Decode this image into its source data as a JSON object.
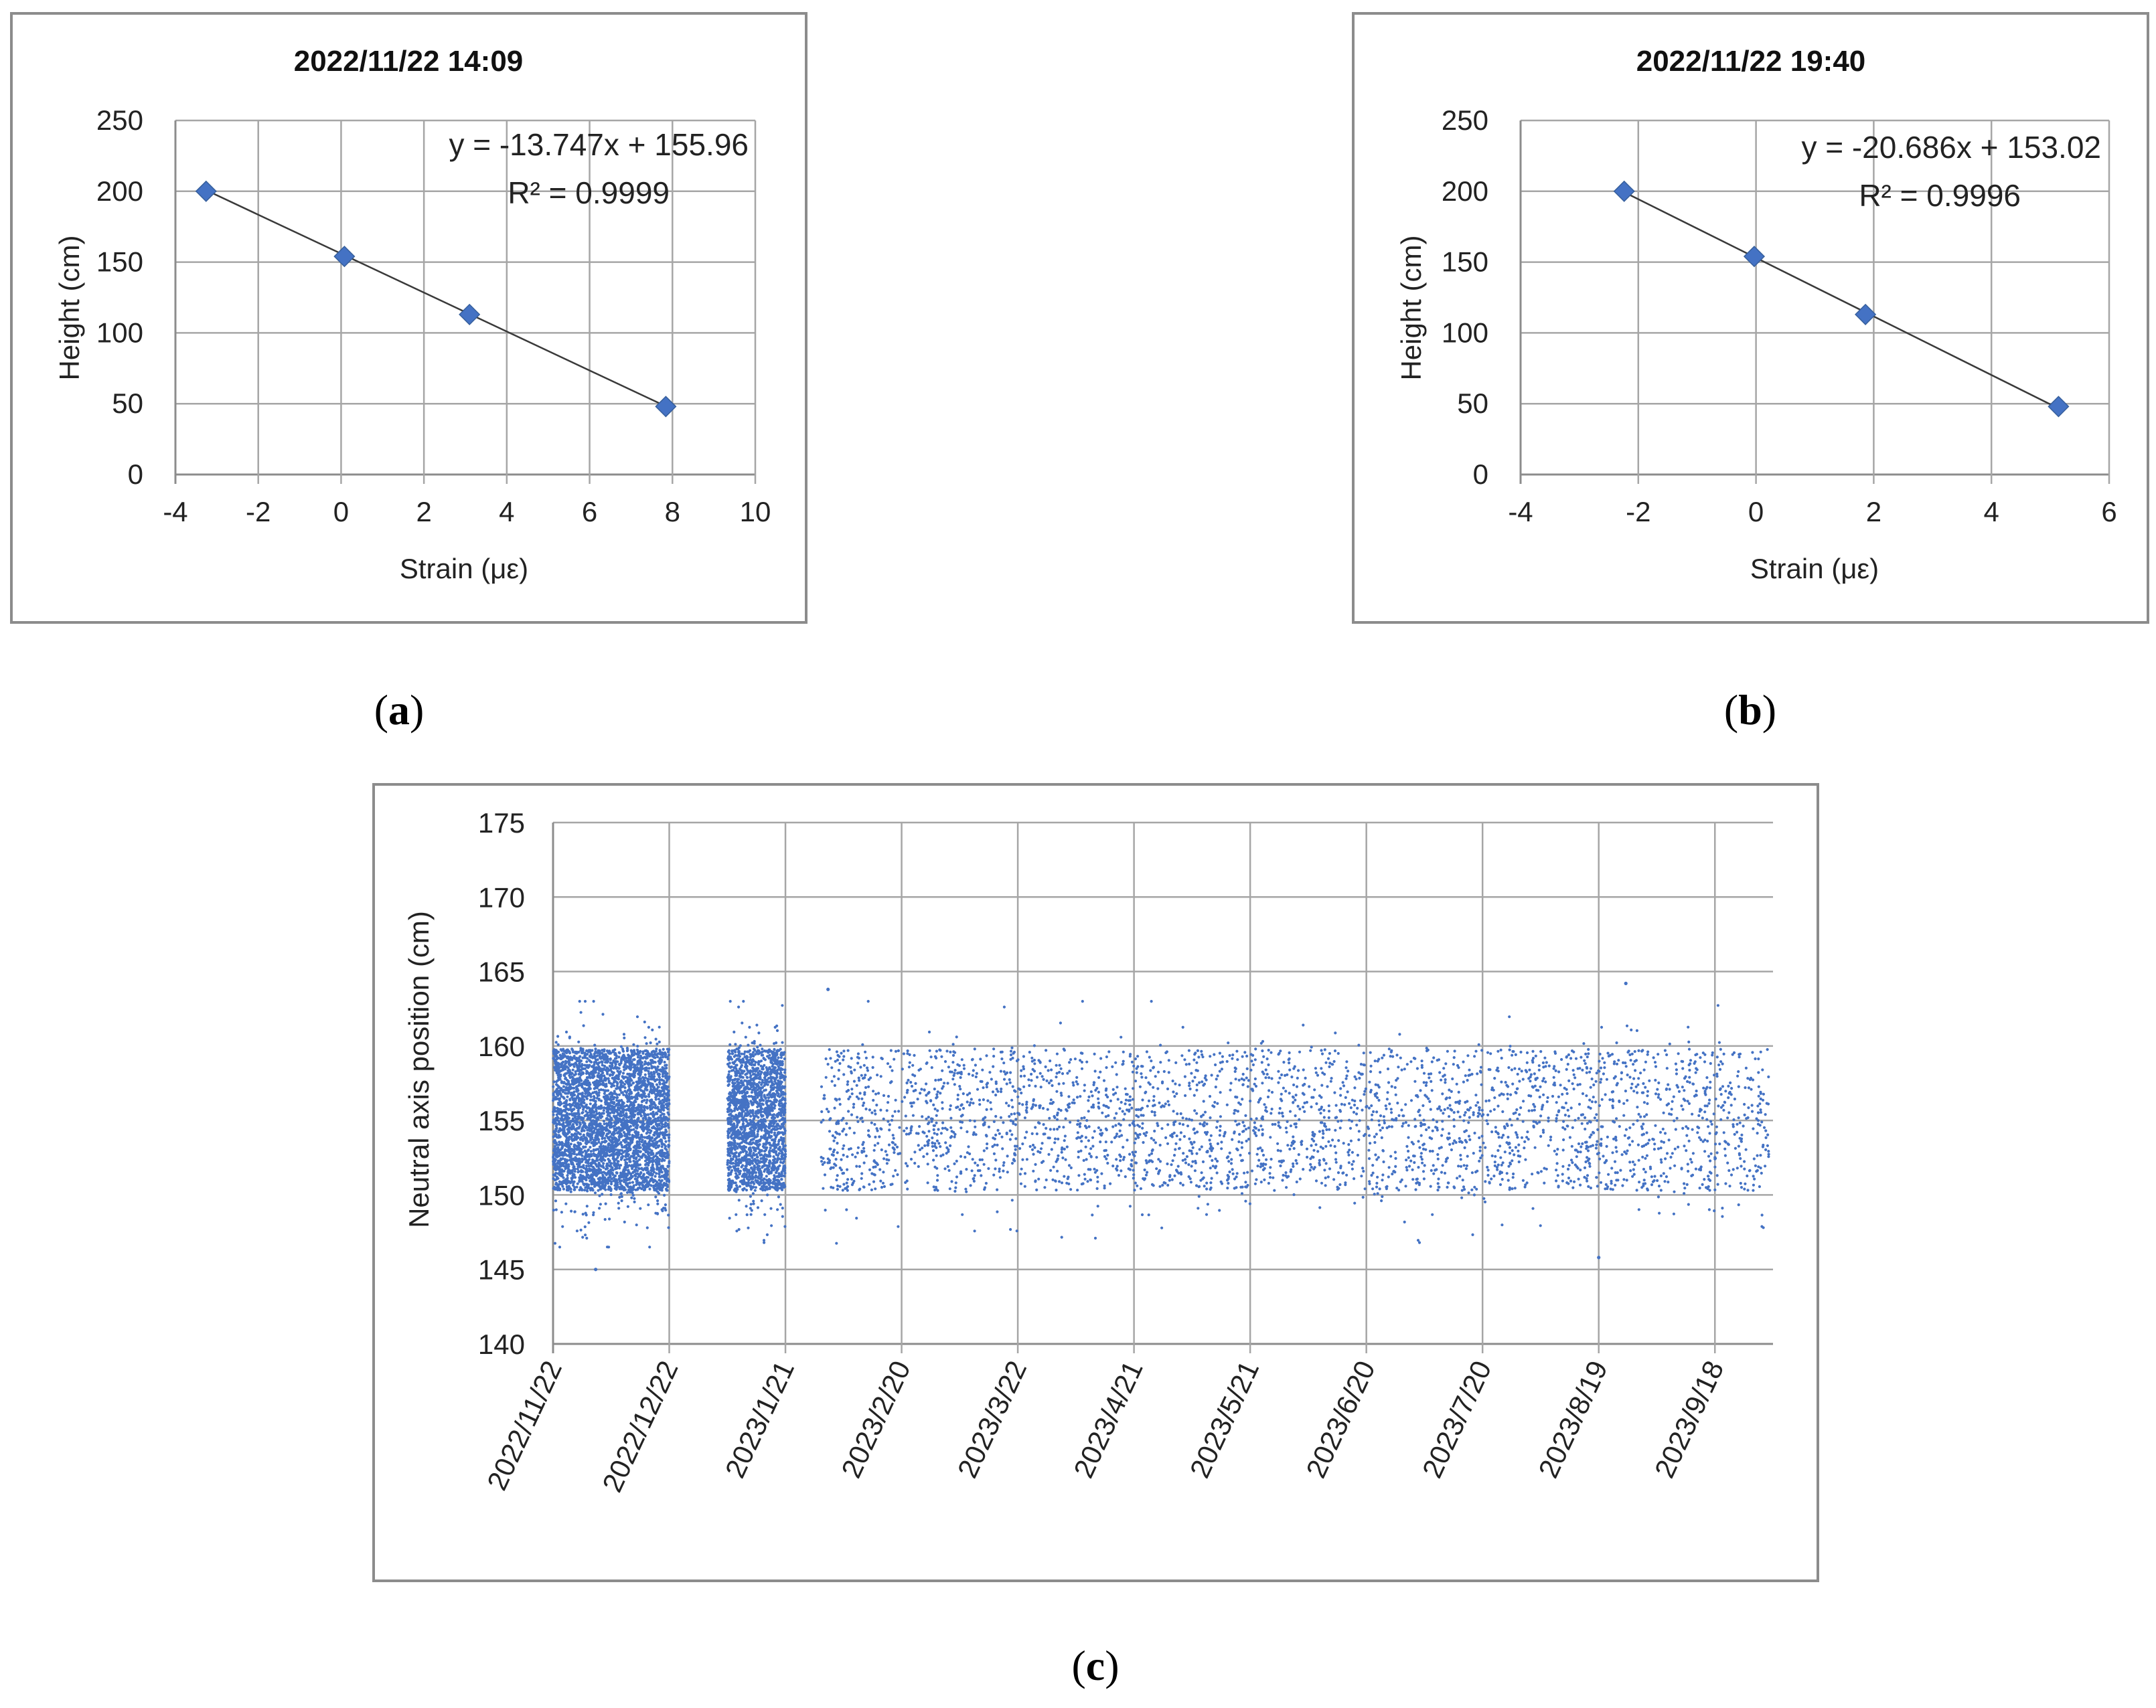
{
  "figure": {
    "panel_labels": [
      "(a)",
      "(b)",
      "(c)"
    ]
  },
  "chart_data": [
    {
      "id": "a",
      "type": "scatter",
      "title": "2022/11/22 14:09",
      "xlabel": "Strain (με)",
      "ylabel": "Height (cm)",
      "xlim": [
        -4,
        10
      ],
      "ylim": [
        0,
        250
      ],
      "xticks": [
        -4,
        -2,
        0,
        2,
        4,
        6,
        8,
        10
      ],
      "yticks": [
        0,
        50,
        100,
        150,
        200,
        250
      ],
      "x": [
        -3.26,
        0.08,
        3.1,
        7.84
      ],
      "y": [
        200,
        154,
        113,
        48
      ],
      "marker_color": "#4472c4",
      "trendline": {
        "slope": -13.747,
        "intercept": 155.96
      },
      "equation": "y = -13.747x + 155.96",
      "r2_label": "R² = 0.9999",
      "grid": true
    },
    {
      "id": "b",
      "type": "scatter",
      "title": "2022/11/22 19:40",
      "xlabel": "Strain (με)",
      "ylabel": "Height (cm)",
      "xlim": [
        -4,
        6
      ],
      "ylim": [
        0,
        250
      ],
      "xticks": [
        -4,
        -2,
        0,
        2,
        4,
        6
      ],
      "yticks": [
        0,
        50,
        100,
        150,
        200,
        250
      ],
      "x": [
        -2.24,
        -0.03,
        1.86,
        5.14
      ],
      "y": [
        200,
        154,
        113,
        48
      ],
      "marker_color": "#4472c4",
      "trendline": {
        "slope": -20.686,
        "intercept": 153.02
      },
      "equation": "y = -20.686x + 153.02",
      "r2_label": "R² = 0.9996",
      "grid": true
    },
    {
      "id": "c",
      "type": "scatter",
      "title": "",
      "xlabel": "",
      "ylabel": "Neutral axis position (cm)",
      "ylim": [
        140,
        175
      ],
      "yticks": [
        140,
        145,
        150,
        155,
        160,
        165,
        170,
        175
      ],
      "xticks": [
        "2022/11/22",
        "2022/12/22",
        "2023/1/21",
        "2023/2/20",
        "2023/3/22",
        "2023/4/21",
        "2023/5/21",
        "2023/6/20",
        "2023/7/20",
        "2023/8/19",
        "2023/9/18"
      ],
      "x_unit": "days since 2022/11/22",
      "xlim_days": [
        0,
        315
      ],
      "data_day_ranges": [
        [
          0,
          30
        ],
        [
          45,
          60
        ],
        [
          69,
          314
        ]
      ],
      "typical_range": [
        150,
        160
      ],
      "center_value": 154.5,
      "outliers": [
        {
          "day": 11,
          "value": 145
        },
        {
          "day": 270,
          "value": 145.8
        },
        {
          "day": 71,
          "value": 163.8
        },
        {
          "day": 277,
          "value": 164.2
        }
      ],
      "marker_color": "#4472c4",
      "grid": true
    }
  ]
}
